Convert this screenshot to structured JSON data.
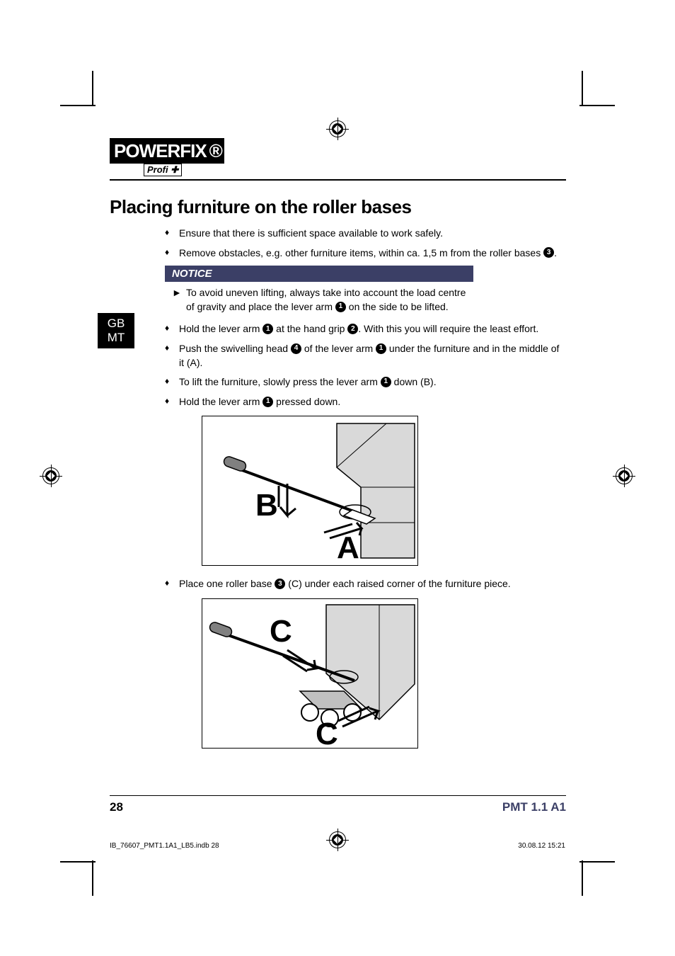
{
  "logo": {
    "brand": "POWERFIX",
    "sub": "Profi ✚"
  },
  "title": "Placing furniture on the roller bases",
  "bullets_top": [
    "Ensure that there is sufficient space available to work safely.",
    {
      "pre": "Remove obstacles, e.g. other furniture items, within ca. 1,5 m from the roller bases ",
      "num": "3",
      "post": "."
    }
  ],
  "notice": {
    "label": "NOTICE",
    "text_pre": "To avoid uneven lifting, always take into account the load centre of gravity and place the lever arm ",
    "num": "1",
    "text_post": " on the side to be lifted."
  },
  "bullets_mid": [
    {
      "parts": [
        "Hold the lever arm ",
        {
          "n": "1"
        },
        " at the hand grip ",
        {
          "n": "2"
        },
        ". With this you will require the least effort."
      ]
    },
    {
      "parts": [
        "Push the swivelling head ",
        {
          "n": "4"
        },
        " of the lever arm ",
        {
          "n": "1"
        },
        " under the furniture and in the middle of it (A)."
      ]
    },
    {
      "parts": [
        "To lift the furniture, slowly press the lever arm ",
        {
          "n": "1"
        },
        " down (B)."
      ]
    },
    {
      "parts": [
        "Hold the lever arm ",
        {
          "n": "1"
        },
        " pressed down."
      ]
    }
  ],
  "bullet_after_fig1": {
    "parts": [
      "Place one roller base ",
      {
        "n": "3"
      },
      " (C) under each raised corner of the furniture piece."
    ]
  },
  "fig1": {
    "labels": [
      "B",
      "A"
    ]
  },
  "fig2": {
    "labels": [
      "C",
      "C"
    ]
  },
  "lang_tab": [
    "GB",
    "MT"
  ],
  "footer": {
    "page": "28",
    "model": "PMT 1.1 A1"
  },
  "slug": {
    "file": "IB_76607_PMT1.1A1_LB5.indb   28",
    "stamp": "30.08.12   15:21"
  },
  "colors": {
    "notice_bg": "#3b3f66",
    "model_color": "#3b3f66"
  }
}
